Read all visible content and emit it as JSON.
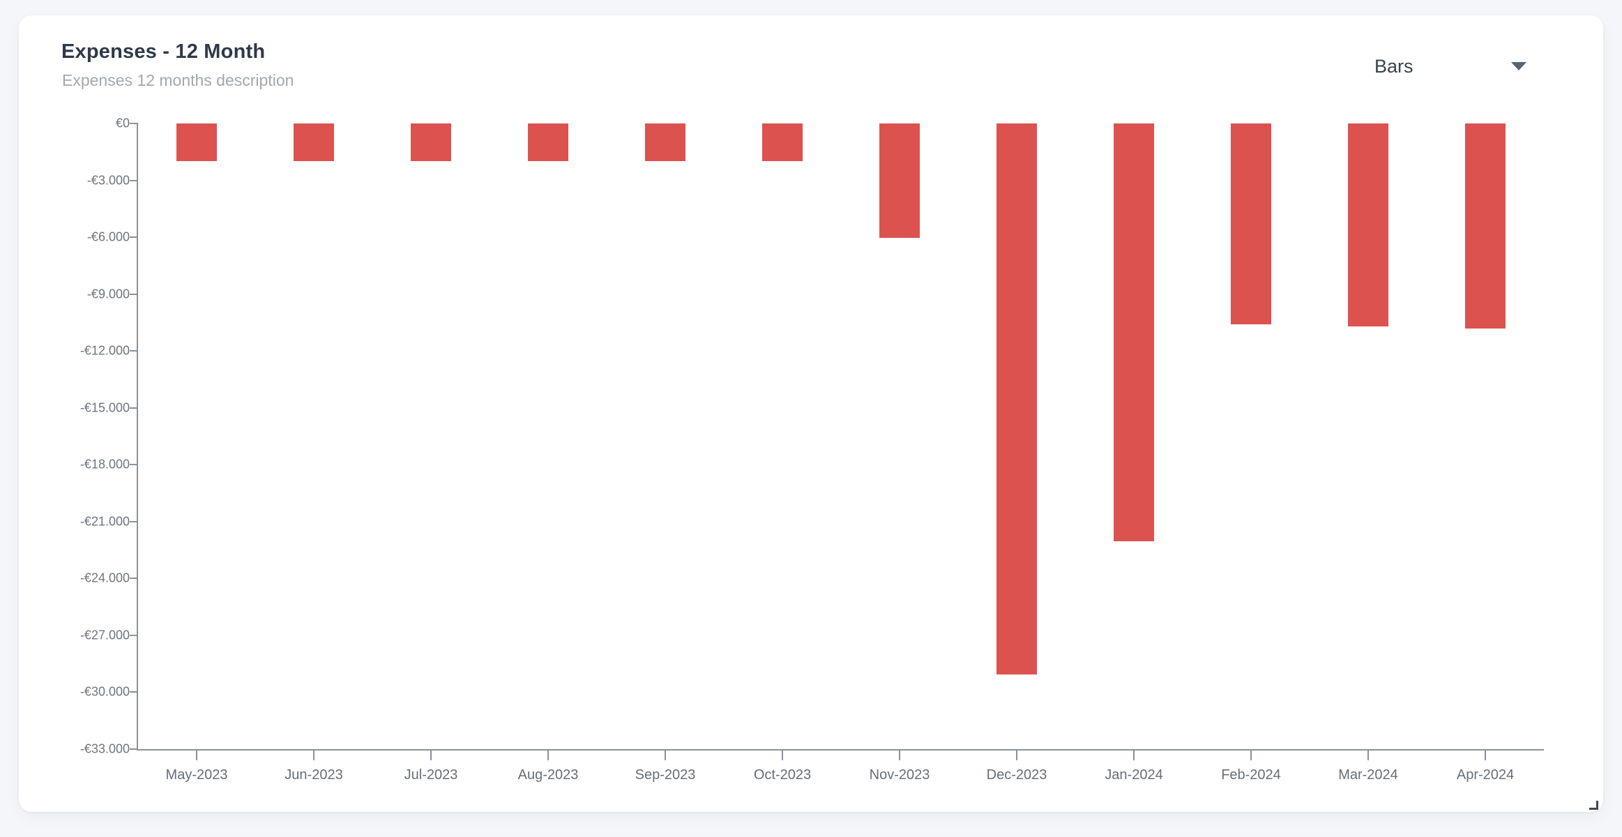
{
  "page": {
    "background": "#f4f6f9"
  },
  "card": {
    "background": "#ffffff"
  },
  "header": {
    "title": "Expenses - 12 Month",
    "subtitle": "Expenses 12 months description"
  },
  "controls": {
    "chart_type_selector": {
      "value": "Bars",
      "icon": "caret-down-icon"
    }
  },
  "chart_data": {
    "type": "bar",
    "title": "Expenses - 12 Month",
    "currency": "EUR",
    "categories": [
      "May-2023",
      "Jun-2023",
      "Jul-2023",
      "Aug-2023",
      "Sep-2023",
      "Oct-2023",
      "Nov-2023",
      "Dec-2023",
      "Jan-2024",
      "Feb-2024",
      "Mar-2024",
      "Apr-2024"
    ],
    "values": [
      -2000,
      -2000,
      -2000,
      -2000,
      -2000,
      -2000,
      -6050,
      -29050,
      -22050,
      -10600,
      -10700,
      -10800
    ],
    "ylim": [
      -33000,
      0
    ],
    "y_tick_step": 3000,
    "y_tick_labels": [
      "€0",
      "-€3.000",
      "-€6.000",
      "-€9.000",
      "-€12.000",
      "-€15.000",
      "-€18.000",
      "-€21.000",
      "-€24.000",
      "-€27.000",
      "-€30.000",
      "-€33.000"
    ],
    "grid": false,
    "legend": false,
    "bar_color": "#dc524f",
    "axis_color": "#8a9199",
    "y_label_color": "#6e757d",
    "x_label_color": "#676e76"
  }
}
